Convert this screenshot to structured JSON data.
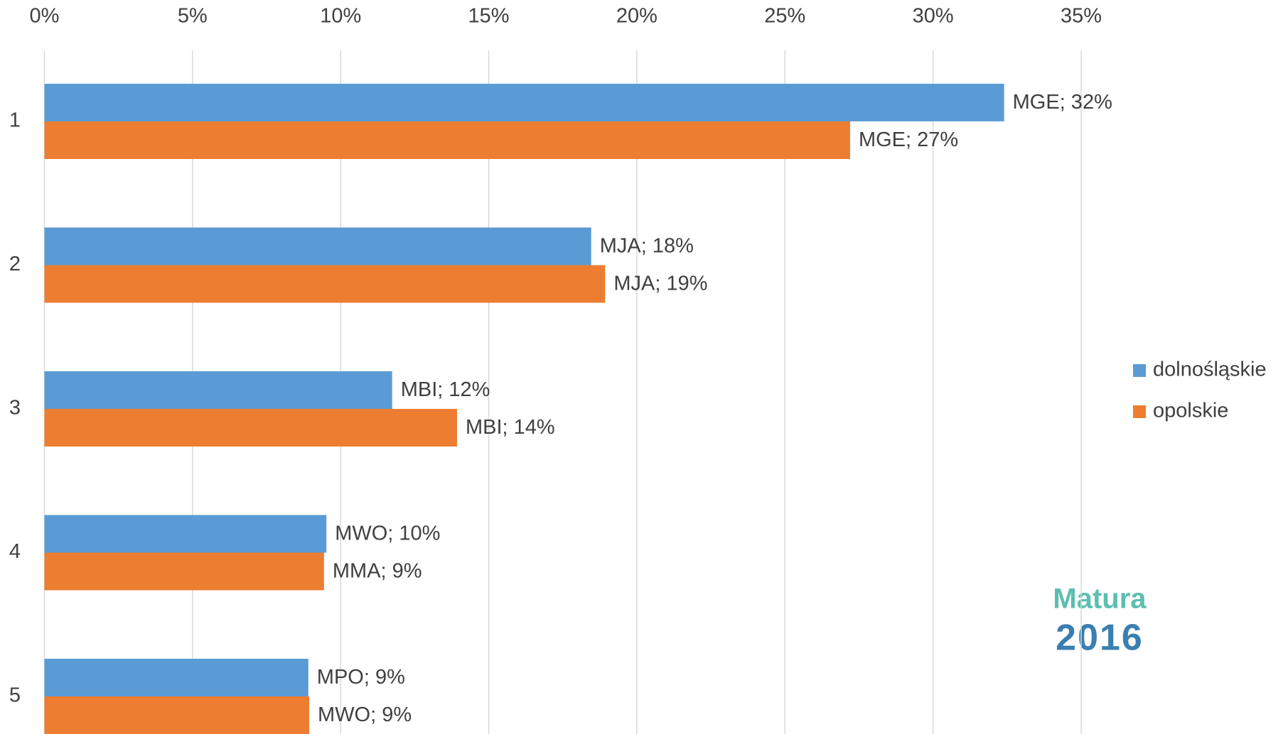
{
  "chart_data": {
    "type": "barh",
    "categories": [
      "1",
      "2",
      "3",
      "4",
      "5"
    ],
    "series": [
      {
        "name": "dolnośląskie",
        "color": "#5b9bd5",
        "values": [
          32.4,
          18.46,
          11.74,
          9.52,
          8.91
        ],
        "value_labels": [
          "MGE; 32%",
          "MJA; 18%",
          "MBI; 12%",
          "MWO; 10%",
          "MPO; 9%"
        ]
      },
      {
        "name": "opolskie",
        "color": "#ed7d31",
        "values": [
          27.2,
          18.93,
          13.93,
          9.44,
          8.94
        ],
        "value_labels": [
          "MGE; 27%",
          "MJA; 19%",
          "MBI; 14%",
          "MMA; 9%",
          "MWO; 9%"
        ]
      }
    ],
    "xlim": [
      0,
      35
    ],
    "xticks": [
      {
        "value": 0,
        "label": "0%"
      },
      {
        "value": 5,
        "label": "5%"
      },
      {
        "value": 10,
        "label": "10%"
      },
      {
        "value": 15,
        "label": "15%"
      },
      {
        "value": 20,
        "label": "20%"
      },
      {
        "value": 25,
        "label": "25%"
      },
      {
        "value": 30,
        "label": "30%"
      },
      {
        "value": 35,
        "label": "35%"
      }
    ],
    "grid": true,
    "legend": "right"
  },
  "logo": {
    "title": "Matura",
    "year": "2016"
  }
}
